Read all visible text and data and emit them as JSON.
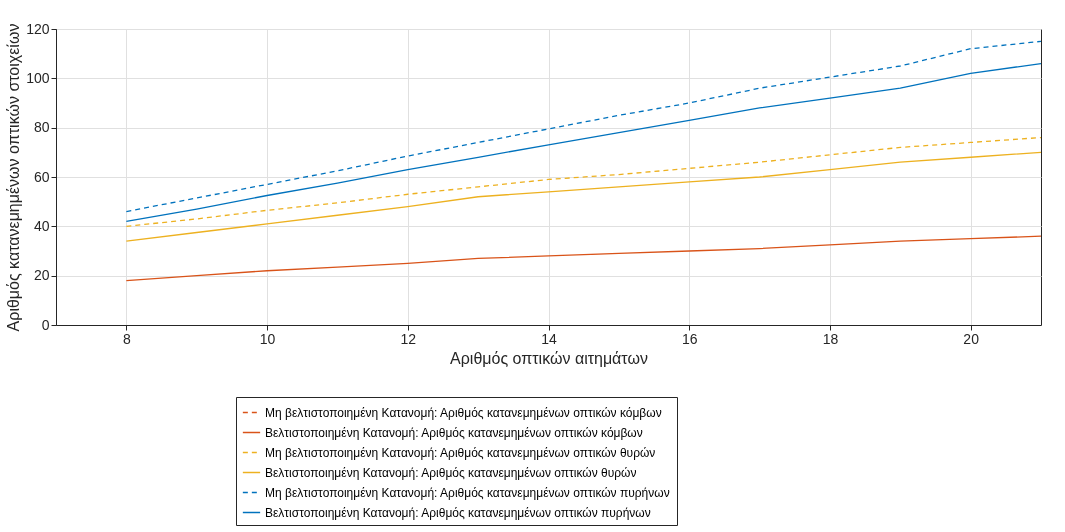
{
  "chart_data": {
    "type": "line",
    "xlabel": "Αριθμός οπτικών αιτημάτων",
    "ylabel": "Αριθμός κατανεμημένων οπτικών στοιχείων",
    "x": [
      8,
      9,
      10,
      11,
      12,
      13,
      14,
      15,
      16,
      17,
      18,
      19,
      20,
      21
    ],
    "series": [
      {
        "name": "Μη βελτιστοποιημένη Κατανομή: Αριθμός κατανεμημένων οπτικών κόμβων",
        "color": "#d95319",
        "line_style": "dashed",
        "values": [
          null,
          null,
          null,
          null,
          null,
          null,
          null,
          null,
          null,
          null,
          null,
          null,
          null,
          null
        ]
      },
      {
        "name": "Βελτιστοποιημένη Κατανομή: Αριθμός κατανεμημένων οπτικών κόμβων",
        "color": "#d95319",
        "line_style": "solid",
        "values": [
          18,
          20,
          22,
          23.5,
          25,
          27,
          28,
          29,
          30,
          31,
          32.5,
          34,
          35,
          36
        ]
      },
      {
        "name": "Μη βελτιστοποιημένη Κατανομή: Αριθμός κατανεμημένων οπτικών θυρών",
        "color": "#edb120",
        "line_style": "dashed",
        "values": [
          40,
          43,
          46.5,
          49.5,
          53,
          56,
          59,
          61,
          63.5,
          66,
          69,
          72,
          74,
          76
        ]
      },
      {
        "name": "Βελτιστοποιημένη Κατανομή: Αριθμός κατανεμημένων οπτικών θυρών",
        "color": "#edb120",
        "line_style": "solid",
        "values": [
          34,
          37.5,
          41,
          44.5,
          48,
          52,
          54,
          56,
          58,
          60,
          63,
          66,
          68,
          70
        ]
      },
      {
        "name": "Μη βελτιστοποιημένη Κατανομή: Αριθμός κατανεμημένων οπτικών πυρήνων",
        "color": "#0072bd",
        "line_style": "dashed",
        "values": [
          46,
          51.5,
          57,
          62.5,
          68.5,
          74,
          79.5,
          85,
          90,
          96,
          100.5,
          105,
          112,
          115
        ]
      },
      {
        "name": "Βελτιστοποιημένη Κατανομή: Αριθμός κατανεμημένων οπτικών πυρήνων",
        "color": "#0072bd",
        "line_style": "solid",
        "values": [
          42,
          47,
          52.5,
          57.5,
          63,
          68,
          73,
          78,
          83,
          88,
          92,
          96,
          102,
          106
        ]
      }
    ],
    "xlim": [
      7,
      21
    ],
    "xticks": [
      8,
      10,
      12,
      14,
      16,
      18,
      20
    ],
    "ylim": [
      0,
      120
    ],
    "yticks": [
      0,
      20,
      40,
      60,
      80,
      100,
      120
    ],
    "grid": true,
    "legend": "bottom"
  }
}
